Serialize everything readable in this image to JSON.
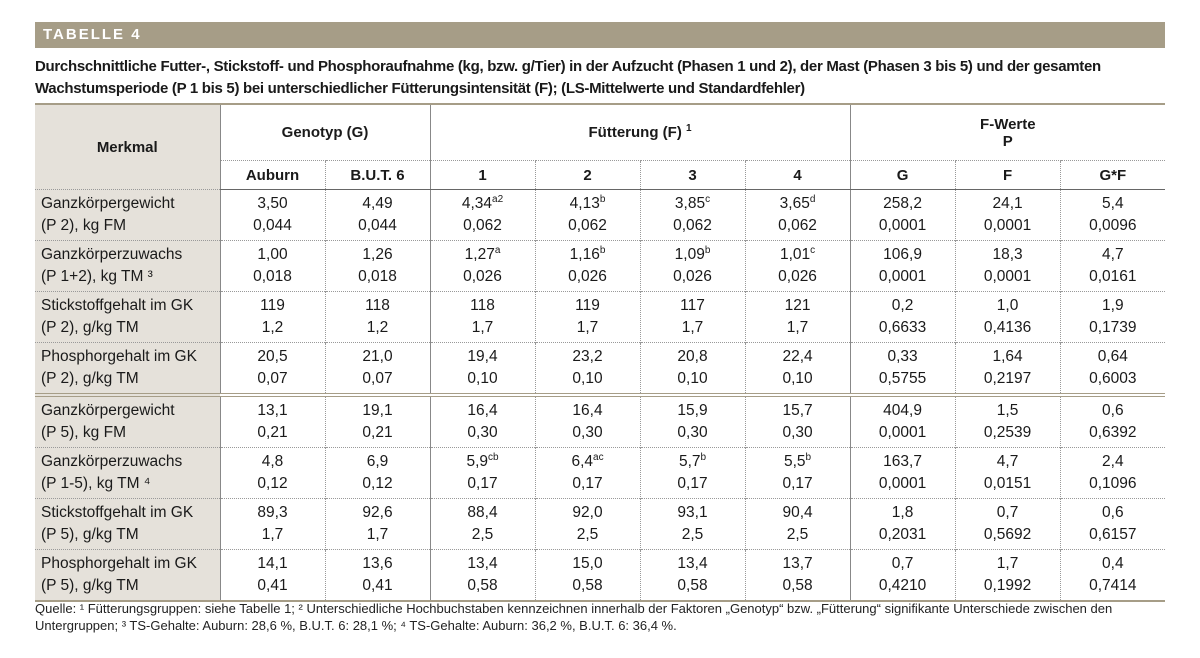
{
  "label": "TABELLE 4",
  "title": "Durchschnittliche Futter-, Stickstoff- und Phosphoraufnahme (kg, bzw. g/Tier) in der Aufzucht (Phasen 1 und 2), der Mast (Phasen 3 bis 5) und der gesamten Wachstumsperiode (P 1 bis 5) bei unterschiedlicher Fütterungsintensität (F); (LS-Mittelwerte und Standardfehler)",
  "table": {
    "header": {
      "merkmal": "Merkmal",
      "genotyp": "Genotyp (G)",
      "fuetterung": "Fütterung (F)",
      "fuetterung_sup": "1",
      "fwerte": "F-Werte",
      "p": "P",
      "columns": [
        "Auburn",
        "B.U.T. 6",
        "1",
        "2",
        "3",
        "4",
        "G",
        "F",
        "G*F"
      ]
    },
    "rows": [
      {
        "label": [
          "Ganzkörpergewicht",
          "(P 2), kg FM"
        ],
        "cells": [
          {
            "v": "3,50",
            "se": "0,044"
          },
          {
            "v": "4,49",
            "se": "0,044"
          },
          {
            "v": "4,34",
            "sup": "a2",
            "se": "0,062"
          },
          {
            "v": "4,13",
            "sup": "b",
            "se": "0,062"
          },
          {
            "v": "3,85",
            "sup": "c",
            "se": "0,062"
          },
          {
            "v": "3,65",
            "sup": "d",
            "se": "0,062"
          },
          {
            "v": "258,2",
            "se": "0,0001"
          },
          {
            "v": "24,1",
            "se": "0,0001"
          },
          {
            "v": "5,4",
            "se": "0,0096"
          }
        ]
      },
      {
        "label": [
          "Ganzkörperzuwachs",
          "(P 1+2), kg TM ³"
        ],
        "cells": [
          {
            "v": "1,00",
            "se": "0,018"
          },
          {
            "v": "1,26",
            "se": "0,018"
          },
          {
            "v": "1,27",
            "sup": "a",
            "se": "0,026"
          },
          {
            "v": "1,16",
            "sup": "b",
            "se": "0,026"
          },
          {
            "v": "1,09",
            "sup": "b",
            "se": "0,026"
          },
          {
            "v": "1,01",
            "sup": "c",
            "se": "0,026"
          },
          {
            "v": "106,9",
            "se": "0,0001"
          },
          {
            "v": "18,3",
            "se": "0,0001"
          },
          {
            "v": "4,7",
            "se": "0,0161"
          }
        ]
      },
      {
        "label": [
          "Stickstoffgehalt im GK",
          "(P 2), g/kg TM"
        ],
        "cells": [
          {
            "v": "119",
            "se": "1,2"
          },
          {
            "v": "118",
            "se": "1,2"
          },
          {
            "v": "118",
            "se": "1,7"
          },
          {
            "v": "119",
            "se": "1,7"
          },
          {
            "v": "117",
            "se": "1,7"
          },
          {
            "v": "121",
            "se": "1,7"
          },
          {
            "v": "0,2",
            "se": "0,6633"
          },
          {
            "v": "1,0",
            "se": "0,4136"
          },
          {
            "v": "1,9",
            "se": "0,1739"
          }
        ]
      },
      {
        "label": [
          "Phosphorgehalt im GK",
          "(P 2), g/kg TM"
        ],
        "cells": [
          {
            "v": "20,5",
            "se": "0,07"
          },
          {
            "v": "21,0",
            "se": "0,07"
          },
          {
            "v": "19,4",
            "se": "0,10"
          },
          {
            "v": "23,2",
            "se": "0,10"
          },
          {
            "v": "20,8",
            "se": "0,10"
          },
          {
            "v": "22,4",
            "se": "0,10"
          },
          {
            "v": "0,33",
            "se": "0,5755"
          },
          {
            "v": "1,64",
            "se": "0,2197"
          },
          {
            "v": "0,64",
            "se": "0,6003"
          }
        ]
      },
      {
        "label": [
          "Ganzkörpergewicht",
          "(P 5), kg FM"
        ],
        "cells": [
          {
            "v": "13,1",
            "se": "0,21"
          },
          {
            "v": "19,1",
            "se": "0,21"
          },
          {
            "v": "16,4",
            "se": "0,30"
          },
          {
            "v": "16,4",
            "se": "0,30"
          },
          {
            "v": "15,9",
            "se": "0,30"
          },
          {
            "v": "15,7",
            "se": "0,30"
          },
          {
            "v": "404,9",
            "se": "0,0001"
          },
          {
            "v": "1,5",
            "se": "0,2539"
          },
          {
            "v": "0,6",
            "se": "0,6392"
          }
        ]
      },
      {
        "label": [
          "Ganzkörperzuwachs",
          "(P 1-5), kg TM ⁴"
        ],
        "cells": [
          {
            "v": "4,8",
            "se": "0,12"
          },
          {
            "v": "6,9",
            "se": "0,12"
          },
          {
            "v": "5,9",
            "sup": "cb",
            "se": "0,17"
          },
          {
            "v": "6,4",
            "sup": "ac",
            "se": "0,17"
          },
          {
            "v": "5,7",
            "sup": "b",
            "se": "0,17"
          },
          {
            "v": "5,5",
            "sup": "b",
            "se": "0,17"
          },
          {
            "v": "163,7",
            "se": "0,0001"
          },
          {
            "v": "4,7",
            "se": "0,0151"
          },
          {
            "v": "2,4",
            "se": "0,1096"
          }
        ]
      },
      {
        "label": [
          "Stickstoffgehalt im GK",
          "(P 5), g/kg TM"
        ],
        "cells": [
          {
            "v": "89,3",
            "se": "1,7"
          },
          {
            "v": "92,6",
            "se": "1,7"
          },
          {
            "v": "88,4",
            "se": "2,5"
          },
          {
            "v": "92,0",
            "se": "2,5"
          },
          {
            "v": "93,1",
            "se": "2,5"
          },
          {
            "v": "90,4",
            "se": "2,5"
          },
          {
            "v": "1,8",
            "se": "0,2031"
          },
          {
            "v": "0,7",
            "se": "0,5692"
          },
          {
            "v": "0,6",
            "se": "0,6157"
          }
        ]
      },
      {
        "label": [
          "Phosphorgehalt im GK",
          "(P 5), g/kg TM"
        ],
        "cells": [
          {
            "v": "14,1",
            "se": "0,41"
          },
          {
            "v": "13,6",
            "se": "0,41"
          },
          {
            "v": "13,4",
            "se": "0,58"
          },
          {
            "v": "15,0",
            "se": "0,58"
          },
          {
            "v": "13,4",
            "se": "0,58"
          },
          {
            "v": "13,7",
            "se": "0,58"
          },
          {
            "v": "0,7",
            "se": "0,4210"
          },
          {
            "v": "1,7",
            "se": "0,1992"
          },
          {
            "v": "0,4",
            "se": "0,7414"
          }
        ]
      }
    ]
  },
  "source": "Quelle: ¹ Fütterungsgruppen: siehe Tabelle 1; ² Unterschiedliche Hochbuchstaben kennzeichnen innerhalb der Faktoren „Genotyp“ bzw. „Fütterung“ signifikante Unterschiede zwischen den Untergruppen; ³ TS-Gehalte: Auburn: 28,6 %, B.U.T. 6: 28,1 %;  ⁴ TS-Gehalte: Auburn: 36,2 %, B.U.T. 6: 36,4 %."
}
